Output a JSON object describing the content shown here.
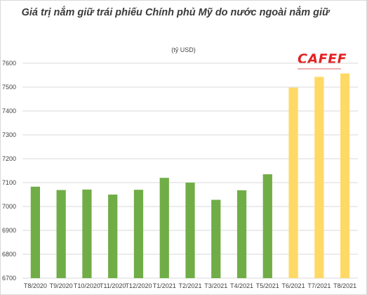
{
  "header": {
    "title": "Giá trị nắm giữ trái phiếu Chính phủ Mỹ do nước ngoài nắm giữ",
    "unit": "(tỷ USD)",
    "logo_text": "CAFEF"
  },
  "chart_data": {
    "type": "bar",
    "title": "Giá trị nắm giữ trái phiếu Chính phủ Mỹ do nước ngoài nắm giữ",
    "ylabel": "(tỷ USD)",
    "xlabel": "",
    "ylim": [
      6700,
      7600
    ],
    "yticks": [
      6700,
      6800,
      6900,
      7000,
      7100,
      7200,
      7300,
      7400,
      7500,
      7600
    ],
    "grid": true,
    "categories": [
      "T8/2020",
      "T9/2020",
      "T10/2020",
      "T11/2020",
      "T12/2020",
      "T1/2021",
      "T2/2021",
      "T3/2021",
      "T4/2021",
      "T5/2021",
      "T6/2021",
      "T7/2021",
      "T8/2021"
    ],
    "values": [
      7083,
      7069,
      7071,
      7050,
      7070,
      7120,
      7100,
      7028,
      7068,
      7135,
      7498,
      7543,
      7557
    ],
    "colors": [
      "#70ad47",
      "#70ad47",
      "#70ad47",
      "#70ad47",
      "#70ad47",
      "#70ad47",
      "#70ad47",
      "#70ad47",
      "#70ad47",
      "#70ad47",
      "#ffd966",
      "#ffd966",
      "#ffd966"
    ],
    "gridline_color": "#d9d9d9"
  }
}
